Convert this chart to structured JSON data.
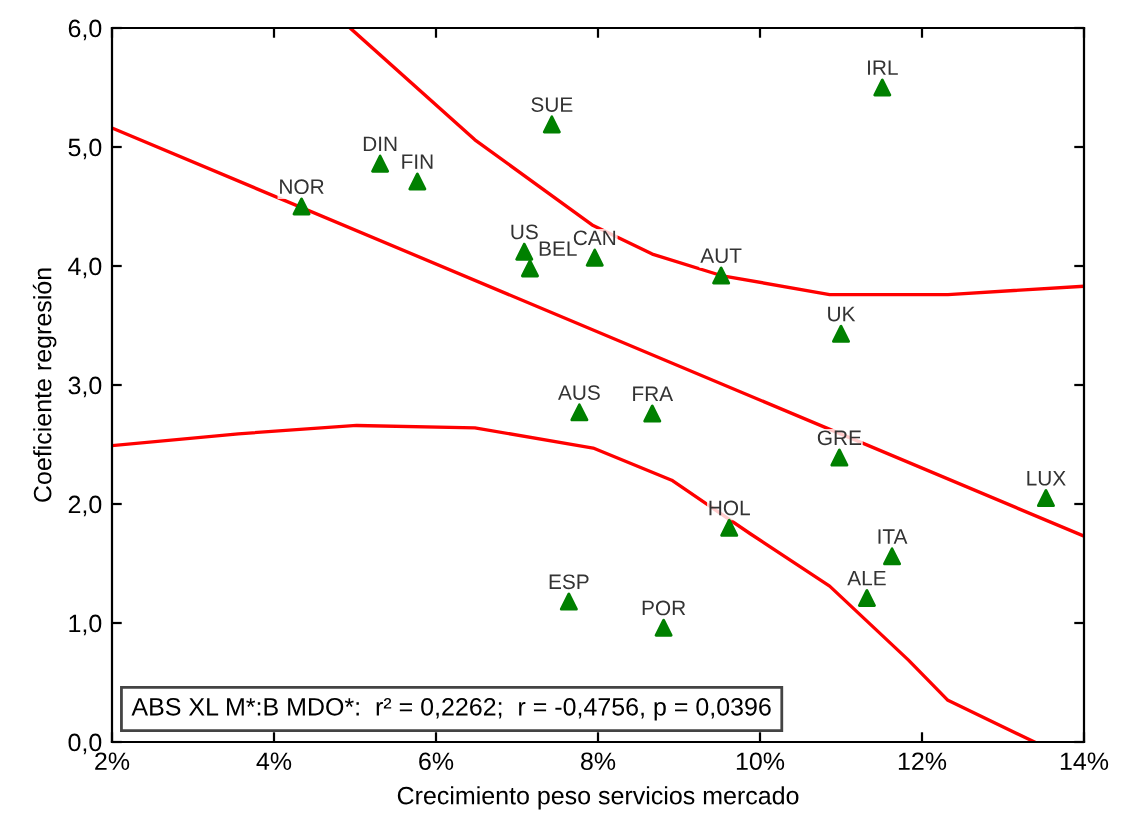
{
  "chart_data": {
    "type": "scatter",
    "xlabel": "Crecimiento peso servicios mercado",
    "ylabel": "Coeficiente regresión",
    "xlim": [
      2,
      14
    ],
    "ylim": [
      0,
      6
    ],
    "xticks": [
      {
        "value": 2,
        "label": "2%"
      },
      {
        "value": 4,
        "label": "4%"
      },
      {
        "value": 6,
        "label": "6%"
      },
      {
        "value": 8,
        "label": "8%"
      },
      {
        "value": 10,
        "label": "10%"
      },
      {
        "value": 12,
        "label": "12%"
      },
      {
        "value": 14,
        "label": "14%"
      }
    ],
    "yticks": [
      {
        "value": 0,
        "label": "0,0"
      },
      {
        "value": 1,
        "label": "1,0"
      },
      {
        "value": 2,
        "label": "2,0"
      },
      {
        "value": 3,
        "label": "3,0"
      },
      {
        "value": 4,
        "label": "4,0"
      },
      {
        "value": 5,
        "label": "5,0"
      },
      {
        "value": 6,
        "label": "6,0"
      }
    ],
    "grid": false,
    "series": [
      {
        "color": "#008000",
        "marker": "triangle",
        "x": [
          4.34,
          5.31,
          5.77,
          7.43,
          7.09,
          7.16,
          7.96,
          9.52,
          11.51,
          11.0,
          7.77,
          8.67,
          10.98,
          13.53,
          9.62,
          11.63,
          11.32,
          7.64,
          8.81
        ],
        "values": [
          4.5,
          4.86,
          4.71,
          5.19,
          4.12,
          3.98,
          4.07,
          3.92,
          5.5,
          3.43,
          2.77,
          2.76,
          2.39,
          2.05,
          1.8,
          1.56,
          1.21,
          1.18,
          0.96
        ]
      },
      {
        "type": "line",
        "color": "#ff0000",
        "line_style": "solid",
        "x": [
          2,
          14
        ],
        "values": [
          5.16,
          1.73
        ]
      },
      {
        "type": "line",
        "color": "#ff0000",
        "line_style": "solid",
        "x": [
          4.94,
          6.48,
          7.94,
          8.67,
          9.52,
          10.86,
          12.32,
          14
        ],
        "values": [
          6.0,
          5.06,
          4.34,
          4.1,
          3.92,
          3.76,
          3.76,
          3.83
        ]
      },
      {
        "type": "line",
        "color": "#ff0000",
        "line_style": "solid",
        "x": [
          2,
          3.56,
          5.02,
          6.48,
          7.94,
          8.91,
          9.88,
          10.86,
          11.83,
          12.32,
          13.39
        ],
        "values": [
          2.49,
          2.59,
          2.66,
          2.64,
          2.47,
          2.2,
          1.75,
          1.31,
          0.69,
          0.35,
          0
        ]
      }
    ],
    "annotations": [
      {
        "text": "NOR",
        "x": 4.34,
        "y": 4.5
      },
      {
        "text": "DIN",
        "x": 5.31,
        "y": 4.86
      },
      {
        "text": "FIN",
        "x": 5.77,
        "y": 4.71
      },
      {
        "text": "SUE",
        "x": 7.43,
        "y": 5.19
      },
      {
        "text": "US",
        "x": 7.09,
        "y": 4.12
      },
      {
        "text": "BEL",
        "x": 7.16,
        "y": 3.98
      },
      {
        "text": "CAN",
        "x": 7.96,
        "y": 4.07
      },
      {
        "text": "AUT",
        "x": 9.52,
        "y": 3.92
      },
      {
        "text": "IRL",
        "x": 11.51,
        "y": 5.5
      },
      {
        "text": "UK",
        "x": 11.0,
        "y": 3.43
      },
      {
        "text": "AUS",
        "x": 7.77,
        "y": 2.77
      },
      {
        "text": "FRA",
        "x": 8.67,
        "y": 2.76
      },
      {
        "text": "GRE",
        "x": 10.98,
        "y": 2.39
      },
      {
        "text": "LUX",
        "x": 13.53,
        "y": 2.05
      },
      {
        "text": "HOL",
        "x": 9.62,
        "y": 1.8
      },
      {
        "text": "ITA",
        "x": 11.63,
        "y": 1.56
      },
      {
        "text": "ALE",
        "x": 11.32,
        "y": 1.21
      },
      {
        "text": "ESP",
        "x": 7.64,
        "y": 1.18
      },
      {
        "text": "POR",
        "x": 8.81,
        "y": 0.96
      },
      "ABS XL M*:B MDO*:  r² = 0,2262;  r = -0,4756, p = 0,0396"
    ]
  }
}
